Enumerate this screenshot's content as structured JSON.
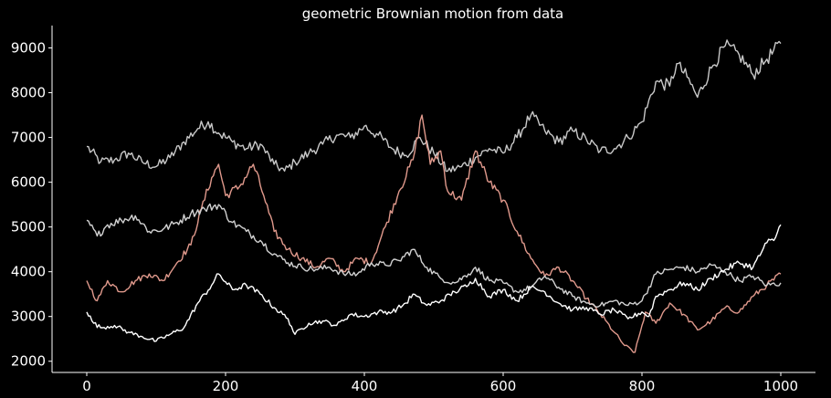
{
  "chart_data": {
    "type": "line",
    "title": "geometric Brownian motion from data",
    "xlabel": "",
    "ylabel": "",
    "xlim": [
      -50,
      1050
    ],
    "ylim": [
      1750,
      9500
    ],
    "xticks": [
      0,
      200,
      400,
      600,
      800,
      1000
    ],
    "yticks": [
      2000,
      3000,
      4000,
      5000,
      6000,
      7000,
      8000,
      9000
    ],
    "grid": false,
    "background": "#000000",
    "series": [
      {
        "color": "#c8c8c8",
        "points": [
          [
            0,
            6800
          ],
          [
            20,
            6450
          ],
          [
            40,
            6500
          ],
          [
            60,
            6650
          ],
          [
            80,
            6450
          ],
          [
            100,
            6350
          ],
          [
            120,
            6550
          ],
          [
            140,
            6900
          ],
          [
            160,
            7200
          ],
          [
            175,
            7350
          ],
          [
            190,
            7100
          ],
          [
            210,
            6900
          ],
          [
            230,
            6750
          ],
          [
            250,
            6850
          ],
          [
            270,
            6400
          ],
          [
            285,
            6250
          ],
          [
            300,
            6450
          ],
          [
            320,
            6650
          ],
          [
            340,
            6850
          ],
          [
            360,
            7050
          ],
          [
            380,
            7000
          ],
          [
            400,
            7250
          ],
          [
            420,
            7050
          ],
          [
            440,
            6750
          ],
          [
            460,
            6600
          ],
          [
            480,
            7000
          ],
          [
            500,
            6650
          ],
          [
            520,
            6250
          ],
          [
            540,
            6350
          ],
          [
            560,
            6550
          ],
          [
            580,
            6750
          ],
          [
            600,
            6650
          ],
          [
            620,
            7000
          ],
          [
            640,
            7500
          ],
          [
            660,
            7150
          ],
          [
            680,
            6900
          ],
          [
            700,
            7150
          ],
          [
            720,
            6950
          ],
          [
            740,
            6700
          ],
          [
            760,
            6750
          ],
          [
            780,
            7000
          ],
          [
            800,
            7350
          ],
          [
            820,
            8250
          ],
          [
            840,
            8150
          ],
          [
            850,
            8650
          ],
          [
            865,
            8350
          ],
          [
            880,
            7900
          ],
          [
            900,
            8550
          ],
          [
            920,
            9050
          ],
          [
            940,
            8850
          ],
          [
            960,
            8400
          ],
          [
            980,
            8750
          ],
          [
            1000,
            9100
          ]
        ]
      },
      {
        "color": "#e0998c",
        "points": [
          [
            0,
            3800
          ],
          [
            15,
            3350
          ],
          [
            30,
            3800
          ],
          [
            50,
            3550
          ],
          [
            70,
            3800
          ],
          [
            90,
            3950
          ],
          [
            110,
            3800
          ],
          [
            130,
            4200
          ],
          [
            150,
            4600
          ],
          [
            165,
            5400
          ],
          [
            180,
            6100
          ],
          [
            190,
            6400
          ],
          [
            200,
            5700
          ],
          [
            220,
            5900
          ],
          [
            240,
            6400
          ],
          [
            255,
            5700
          ],
          [
            270,
            4900
          ],
          [
            290,
            4500
          ],
          [
            310,
            4300
          ],
          [
            330,
            4100
          ],
          [
            350,
            4300
          ],
          [
            370,
            4000
          ],
          [
            390,
            4300
          ],
          [
            410,
            4200
          ],
          [
            430,
            5000
          ],
          [
            450,
            5800
          ],
          [
            470,
            6500
          ],
          [
            483,
            7500
          ],
          [
            495,
            6400
          ],
          [
            510,
            6700
          ],
          [
            520,
            5800
          ],
          [
            540,
            5600
          ],
          [
            560,
            6700
          ],
          [
            580,
            6000
          ],
          [
            600,
            5600
          ],
          [
            620,
            4900
          ],
          [
            640,
            4300
          ],
          [
            660,
            3900
          ],
          [
            680,
            4100
          ],
          [
            700,
            3800
          ],
          [
            720,
            3400
          ],
          [
            740,
            3050
          ],
          [
            760,
            2650
          ],
          [
            775,
            2350
          ],
          [
            790,
            2200
          ],
          [
            805,
            3100
          ],
          [
            820,
            2850
          ],
          [
            840,
            3300
          ],
          [
            860,
            3050
          ],
          [
            880,
            2700
          ],
          [
            900,
            2900
          ],
          [
            920,
            3200
          ],
          [
            940,
            3100
          ],
          [
            960,
            3450
          ],
          [
            980,
            3700
          ],
          [
            1000,
            3950
          ]
        ]
      },
      {
        "color": "#d2d2d2",
        "points": [
          [
            0,
            5150
          ],
          [
            15,
            4800
          ],
          [
            30,
            5050
          ],
          [
            50,
            5150
          ],
          [
            70,
            5250
          ],
          [
            90,
            4900
          ],
          [
            110,
            4950
          ],
          [
            130,
            5100
          ],
          [
            150,
            5300
          ],
          [
            170,
            5400
          ],
          [
            190,
            5500
          ],
          [
            210,
            5100
          ],
          [
            230,
            4900
          ],
          [
            250,
            4700
          ],
          [
            270,
            4400
          ],
          [
            290,
            4200
          ],
          [
            310,
            4100
          ],
          [
            330,
            4050
          ],
          [
            350,
            4100
          ],
          [
            370,
            3950
          ],
          [
            390,
            3950
          ],
          [
            410,
            4200
          ],
          [
            430,
            4150
          ],
          [
            450,
            4250
          ],
          [
            470,
            4500
          ],
          [
            490,
            4100
          ],
          [
            510,
            3850
          ],
          [
            530,
            3750
          ],
          [
            550,
            3950
          ],
          [
            560,
            4100
          ],
          [
            580,
            3800
          ],
          [
            600,
            3750
          ],
          [
            620,
            3550
          ],
          [
            640,
            3650
          ],
          [
            660,
            3900
          ],
          [
            680,
            3650
          ],
          [
            700,
            3450
          ],
          [
            720,
            3300
          ],
          [
            740,
            3250
          ],
          [
            760,
            3350
          ],
          [
            780,
            3250
          ],
          [
            800,
            3350
          ],
          [
            820,
            3950
          ],
          [
            840,
            4050
          ],
          [
            860,
            4100
          ],
          [
            880,
            4000
          ],
          [
            900,
            4150
          ],
          [
            920,
            4000
          ],
          [
            940,
            3800
          ],
          [
            960,
            3900
          ],
          [
            980,
            3700
          ],
          [
            1000,
            3750
          ]
        ]
      },
      {
        "color": "#ffffff",
        "points": [
          [
            0,
            3100
          ],
          [
            10,
            2850
          ],
          [
            20,
            2750
          ],
          [
            40,
            2800
          ],
          [
            60,
            2650
          ],
          [
            80,
            2550
          ],
          [
            100,
            2450
          ],
          [
            120,
            2600
          ],
          [
            140,
            2750
          ],
          [
            160,
            3300
          ],
          [
            180,
            3700
          ],
          [
            190,
            3950
          ],
          [
            210,
            3600
          ],
          [
            230,
            3700
          ],
          [
            250,
            3500
          ],
          [
            270,
            3200
          ],
          [
            290,
            2950
          ],
          [
            300,
            2600
          ],
          [
            320,
            2850
          ],
          [
            340,
            2900
          ],
          [
            360,
            2800
          ],
          [
            380,
            3050
          ],
          [
            400,
            3000
          ],
          [
            420,
            3100
          ],
          [
            440,
            3100
          ],
          [
            460,
            3300
          ],
          [
            470,
            3500
          ],
          [
            490,
            3250
          ],
          [
            510,
            3350
          ],
          [
            530,
            3550
          ],
          [
            550,
            3700
          ],
          [
            560,
            3850
          ],
          [
            580,
            3450
          ],
          [
            600,
            3600
          ],
          [
            620,
            3350
          ],
          [
            640,
            3650
          ],
          [
            660,
            3550
          ],
          [
            680,
            3300
          ],
          [
            700,
            3150
          ],
          [
            720,
            3200
          ],
          [
            740,
            3050
          ],
          [
            760,
            3150
          ],
          [
            780,
            2950
          ],
          [
            800,
            3100
          ],
          [
            810,
            3000
          ],
          [
            820,
            3450
          ],
          [
            840,
            3600
          ],
          [
            860,
            3750
          ],
          [
            880,
            3600
          ],
          [
            900,
            3850
          ],
          [
            920,
            4050
          ],
          [
            940,
            4200
          ],
          [
            960,
            4100
          ],
          [
            980,
            4650
          ],
          [
            990,
            4700
          ],
          [
            1000,
            5050
          ]
        ]
      }
    ]
  }
}
